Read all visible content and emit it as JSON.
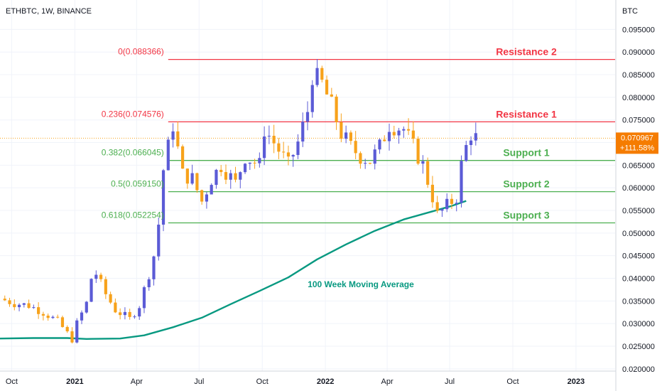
{
  "chart_data": {
    "type": "candlestick",
    "title": "ETHBTC, 1W, BINANCE",
    "y_axis_label": "BTC",
    "ylim": [
      0.0195,
      0.1015
    ],
    "x_range": [
      "2020-09-14",
      "2023-02-27"
    ],
    "y_ticks": [
      "0.095000",
      "0.090000",
      "0.085000",
      "0.080000",
      "0.075000",
      "0.070000",
      "0.065000",
      "0.060000",
      "0.055000",
      "0.050000",
      "0.045000",
      "0.040000",
      "0.035000",
      "0.030000",
      "0.025000",
      "0.020000"
    ],
    "x_ticks": [
      {
        "label": "Oct",
        "date": "2020-10-01",
        "bold": false
      },
      {
        "label": "2021",
        "date": "2021-01-01",
        "bold": true
      },
      {
        "label": "Apr",
        "date": "2021-04-01",
        "bold": false
      },
      {
        "label": "Jul",
        "date": "2021-07-01",
        "bold": false
      },
      {
        "label": "Oct",
        "date": "2021-10-01",
        "bold": false
      },
      {
        "label": "2022",
        "date": "2022-01-01",
        "bold": true
      },
      {
        "label": "Apr",
        "date": "2022-04-01",
        "bold": false
      },
      {
        "label": "Jul",
        "date": "2022-07-01",
        "bold": false
      },
      {
        "label": "Oct",
        "date": "2022-10-01",
        "bold": false
      },
      {
        "label": "2023",
        "date": "2023-01-01",
        "bold": true
      }
    ],
    "current_price": {
      "value": "0.070967",
      "change": "+111.58%",
      "level": 0.070967
    },
    "fib_levels": [
      {
        "label": "0(0.088366)",
        "value": 0.088366,
        "color": "#f23645",
        "zone": "Resistance 2"
      },
      {
        "label": "0.236(0.074576)",
        "value": 0.074576,
        "color": "#f23645",
        "zone": "Resistance 1"
      },
      {
        "label": "0.382(0.066045)",
        "value": 0.066045,
        "color": "#4caf50",
        "zone": "Support 1"
      },
      {
        "label": "0.5(0.059150)",
        "value": 0.05915,
        "color": "#4caf50",
        "zone": "Support 2"
      },
      {
        "label": "0.618(0.052254)",
        "value": 0.052254,
        "color": "#4caf50",
        "zone": "Support 3"
      }
    ],
    "fib_start_date": "2021-05-17",
    "annotation": {
      "text": "100 Week Moving Average",
      "color": "#089981"
    },
    "colors": {
      "up": "#5b5bd6",
      "down": "#f7a21b",
      "ma": "#089981"
    },
    "anchors": [
      [
        "2020-09-14",
        0.0355
      ],
      [
        "2020-10-05",
        0.0345
      ],
      [
        "2020-10-26",
        0.034
      ],
      [
        "2020-11-16",
        0.0325
      ],
      [
        "2020-12-07",
        0.0305
      ],
      [
        "2020-12-28",
        0.0265
      ],
      [
        "2021-01-04",
        0.03
      ],
      [
        "2021-01-18",
        0.0345
      ],
      [
        "2021-01-25",
        0.04
      ],
      [
        "2021-02-01",
        0.041
      ],
      [
        "2021-02-15",
        0.0365
      ],
      [
        "2021-03-01",
        0.033
      ],
      [
        "2021-03-22",
        0.031
      ],
      [
        "2021-04-05",
        0.034
      ],
      [
        "2021-04-19",
        0.041
      ],
      [
        "2021-04-26",
        0.045
      ],
      [
        "2021-05-03",
        0.052
      ],
      [
        "2021-05-10",
        0.064
      ],
      [
        "2021-05-24",
        0.074
      ],
      [
        "2021-06-07",
        0.063
      ],
      [
        "2021-06-21",
        0.062
      ],
      [
        "2021-07-05",
        0.057
      ],
      [
        "2021-07-19",
        0.062
      ],
      [
        "2021-08-02",
        0.065
      ],
      [
        "2021-08-23",
        0.061
      ],
      [
        "2021-09-06",
        0.067
      ],
      [
        "2021-09-27",
        0.065
      ],
      [
        "2021-10-04",
        0.073
      ],
      [
        "2021-10-18",
        0.07
      ],
      [
        "2021-11-08",
        0.065
      ],
      [
        "2021-11-22",
        0.07
      ],
      [
        "2021-12-06",
        0.077
      ],
      [
        "2021-12-13",
        0.085
      ],
      [
        "2021-12-27",
        0.083
      ],
      [
        "2022-01-10",
        0.078
      ],
      [
        "2022-01-24",
        0.072
      ],
      [
        "2022-02-07",
        0.069
      ],
      [
        "2022-02-21",
        0.067
      ],
      [
        "2022-03-07",
        0.066
      ],
      [
        "2022-03-21",
        0.069
      ],
      [
        "2022-04-04",
        0.074
      ],
      [
        "2022-04-25",
        0.073
      ],
      [
        "2022-05-09",
        0.069
      ],
      [
        "2022-05-23",
        0.065
      ],
      [
        "2022-06-06",
        0.058
      ],
      [
        "2022-06-13",
        0.054
      ],
      [
        "2022-06-27",
        0.056
      ],
      [
        "2022-07-11",
        0.058
      ],
      [
        "2022-07-18",
        0.065
      ],
      [
        "2022-07-25",
        0.069
      ],
      [
        "2022-08-01",
        0.072
      ],
      [
        "2022-08-08",
        0.071
      ]
    ],
    "ma_points": [
      [
        "2020-09-14",
        0.0267
      ],
      [
        "2020-11-02",
        0.0268
      ],
      [
        "2020-12-21",
        0.0268
      ],
      [
        "2021-01-18",
        0.0266
      ],
      [
        "2021-03-08",
        0.0267
      ],
      [
        "2021-04-12",
        0.0274
      ],
      [
        "2021-05-24",
        0.0292
      ],
      [
        "2021-07-05",
        0.0313
      ],
      [
        "2021-08-16",
        0.0343
      ],
      [
        "2021-09-27",
        0.0372
      ],
      [
        "2021-11-08",
        0.0402
      ],
      [
        "2021-12-20",
        0.0442
      ],
      [
        "2022-01-31",
        0.0475
      ],
      [
        "2022-03-14",
        0.0505
      ],
      [
        "2022-04-25",
        0.053
      ],
      [
        "2022-06-06",
        0.0548
      ],
      [
        "2022-07-04",
        0.056
      ],
      [
        "2022-07-25",
        0.0571
      ]
    ],
    "ma_end_date": "2022-07-25"
  }
}
